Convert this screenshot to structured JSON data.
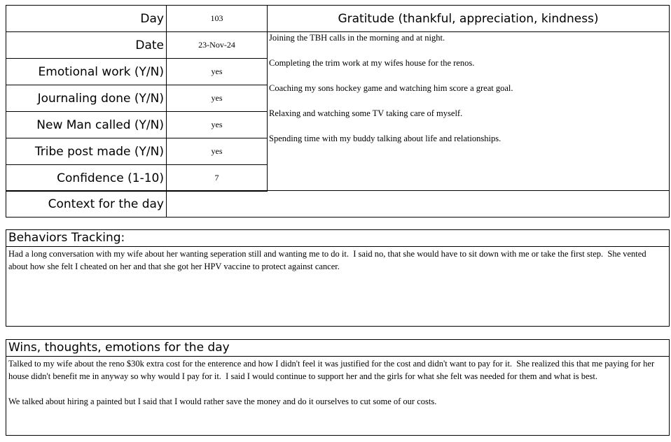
{
  "tracker": {
    "rows": [
      {
        "label": "Day",
        "value": "103"
      },
      {
        "label": "Date",
        "value": "23-Nov-24"
      },
      {
        "label": "Emotional work  (Y/N)",
        "value": "yes"
      },
      {
        "label": "Journaling done  (Y/N)",
        "value": "yes"
      },
      {
        "label": "New Man called  (Y/N)",
        "value": "yes"
      },
      {
        "label": "Tribe post made  (Y/N)",
        "value": "yes"
      },
      {
        "label": "Confidence (1-10)",
        "value": "7"
      }
    ],
    "context_label": "Context for the day",
    "context_value": ""
  },
  "gratitude": {
    "title": "Gratitude (thankful, appreciation, kindness)",
    "items": [
      "Joining the TBH calls in the morning and at night.",
      "Completing the trim work at my wifes house for the renos.",
      "Coaching my sons hockey game and watching him score a great goal.",
      "Relaxing and watching some TV taking care of myself.",
      "Spending time with my buddy talking about life and relationships."
    ]
  },
  "behaviors": {
    "title": "Behaviors Tracking:",
    "text": "Had a long conversation with my wife about her wanting seperation still and wanting me to do it.  I said no, that she would have to sit down with me or take the first step.  She vented about how she felt I cheated on her and that she got her HPV vaccine to protect against cancer."
  },
  "wins": {
    "title": "Wins, thoughts, emotions for the day",
    "text": "Talked to my wife about the reno $30k extra cost for the enterence and how I didn't feel it was justified for the cost and didn't want to pay for it.  She realized this that me paying for her house didn't benefit me in anyway so why would I pay for it.  I said I would continue to support her and the girls for what she felt was needed for them and what is best.\n\nWe talked about hiring a painted but I said that I would rather save the money and do it ourselves to cut some of our costs."
  }
}
